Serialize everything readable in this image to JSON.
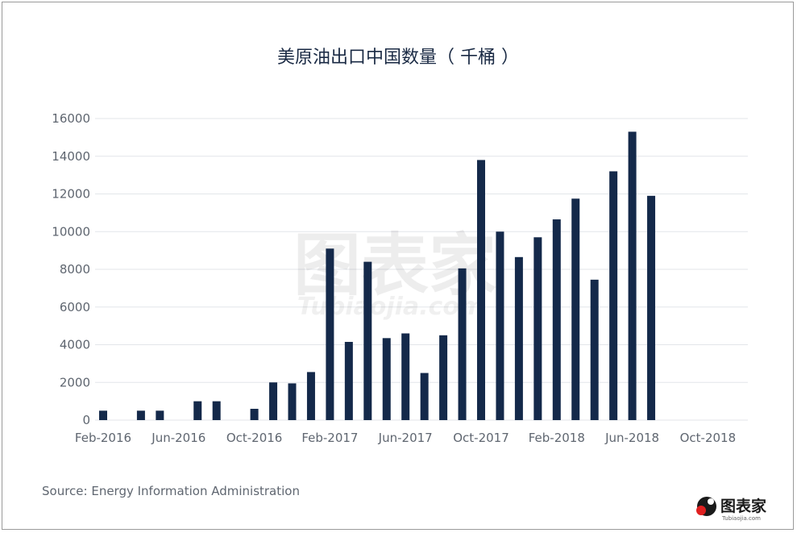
{
  "chart_data": {
    "type": "bar",
    "title": "美原油出口中国数量（ 千桶 ）",
    "source": "Source: Energy Information Administration",
    "ylim": [
      0,
      16000
    ],
    "yticks": [
      0,
      2000,
      4000,
      6000,
      8000,
      10000,
      12000,
      14000,
      16000
    ],
    "x_tick_labels": [
      "Feb-2016",
      "Jun-2016",
      "Oct-2016",
      "Feb-2017",
      "Jun-2017",
      "Oct-2017",
      "Feb-2018",
      "Jun-2018",
      "Oct-2018"
    ],
    "categories": [
      "Feb-2016",
      "Mar-2016",
      "Apr-2016",
      "May-2016",
      "Jun-2016",
      "Jul-2016",
      "Aug-2016",
      "Sep-2016",
      "Oct-2016",
      "Nov-2016",
      "Dec-2016",
      "Jan-2017",
      "Feb-2017",
      "Mar-2017",
      "Apr-2017",
      "May-2017",
      "Jun-2017",
      "Jul-2017",
      "Aug-2017",
      "Sep-2017",
      "Oct-2017",
      "Nov-2017",
      "Dec-2017",
      "Jan-2018",
      "Feb-2018",
      "Mar-2018",
      "Apr-2018",
      "May-2018",
      "Jun-2018",
      "Jul-2018",
      "Aug-2018",
      "Sep-2018",
      "Oct-2018"
    ],
    "values": [
      500,
      0,
      500,
      500,
      0,
      1000,
      1000,
      0,
      600,
      2000,
      1950,
      2550,
      9100,
      4150,
      8400,
      4350,
      4600,
      2500,
      4500,
      8050,
      13800,
      10000,
      8650,
      9700,
      10650,
      11750,
      7450,
      13200,
      15300,
      11900,
      0,
      0,
      0
    ],
    "bar_color": "#14294a",
    "grid": true,
    "legend": "none"
  },
  "watermark": {
    "cn": "图表家",
    "en": "Tubiaojia.com"
  },
  "logo": {
    "text": "图表家",
    "sub": "Tubiaojia.com"
  }
}
